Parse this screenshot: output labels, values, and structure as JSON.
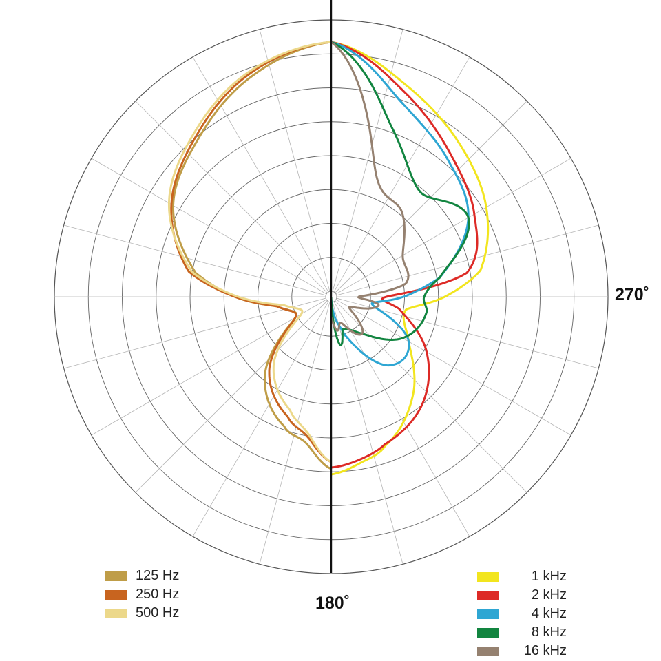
{
  "chart_data": {
    "type": "polar-line",
    "title": "",
    "angle_labels": {
      "right": "270˚",
      "bottom": "180˚"
    },
    "radial_rings": 8,
    "angular_spokes_deg": 15,
    "grid": true,
    "legend_left": [
      {
        "name": "125 Hz",
        "color": "#bf9d48"
      },
      {
        "name": "250 Hz",
        "color": "#c8641f"
      },
      {
        "name": "500 Hz",
        "color": "#ecd88a"
      }
    ],
    "legend_right": [
      {
        "name": "1 kHz",
        "color": "#f2e51e"
      },
      {
        "name": "2 kHz",
        "color": "#dd2a26"
      },
      {
        "name": "4 kHz",
        "color": "#2ea6d3"
      },
      {
        "name": "8 kHz",
        "color": "#128540"
      },
      {
        "name": "16 kHz",
        "color": "#958170"
      }
    ],
    "series": [
      {
        "name": "125 Hz",
        "color": "#bf9d48",
        "angles": [
          0,
          20,
          40,
          60,
          80,
          90,
          100,
          120,
          140,
          160,
          170,
          180
        ],
        "radii": [
          370,
          340,
          300,
          265,
          200,
          140,
          80,
          60,
          150,
          200,
          215,
          250
        ]
      },
      {
        "name": "250 Hz",
        "color": "#c8641f",
        "angles": [
          0,
          20,
          40,
          60,
          80,
          90,
          100,
          120,
          140,
          160,
          170,
          180
        ],
        "radii": [
          370,
          345,
          305,
          268,
          210,
          140,
          80,
          60,
          140,
          185,
          205,
          240
        ]
      },
      {
        "name": "500 Hz",
        "color": "#ecd88a",
        "angles": [
          0,
          20,
          40,
          60,
          80,
          90,
          100,
          120,
          140,
          160,
          170,
          180
        ],
        "radii": [
          370,
          348,
          310,
          272,
          205,
          135,
          70,
          50,
          130,
          175,
          200,
          240
        ]
      },
      {
        "name": "1 kHz",
        "color": "#f2e51e",
        "angles": [
          0,
          20,
          40,
          60,
          80,
          90,
          100,
          120,
          140,
          160,
          170,
          180
        ],
        "radii": [
          370,
          325,
          290,
          260,
          220,
          165,
          110,
          130,
          185,
          230,
          245,
          258
        ]
      },
      {
        "name": "2 kHz",
        "color": "#dd2a26",
        "angles": [
          0,
          20,
          40,
          60,
          80,
          90,
          100,
          120,
          140,
          160,
          170,
          180
        ],
        "radii": [
          370,
          315,
          270,
          240,
          200,
          80,
          100,
          160,
          205,
          228,
          240,
          248
        ]
      },
      {
        "name": "4 kHz",
        "color": "#2ea6d3",
        "angles": [
          0,
          20,
          40,
          60,
          80,
          90,
          100,
          120,
          140,
          160,
          170,
          180
        ],
        "radii": [
          370,
          300,
          262,
          230,
          160,
          105,
          60,
          130,
          130,
          60,
          30,
          0
        ]
      },
      {
        "name": "8 kHz",
        "color": "#128540",
        "angles": [
          0,
          20,
          40,
          60,
          80,
          90,
          100,
          120,
          140,
          160,
          170,
          180
        ],
        "radii": [
          370,
          260,
          200,
          230,
          160,
          135,
          140,
          120,
          70,
          50,
          70,
          0
        ]
      },
      {
        "name": "16 kHz",
        "color": "#958170",
        "angles": [
          0,
          20,
          40,
          60,
          80,
          90,
          100,
          120,
          140,
          160,
          170,
          180
        ],
        "radii": [
          370,
          190,
          160,
          120,
          110,
          40,
          70,
          30,
          70,
          40,
          50,
          30
        ]
      }
    ]
  }
}
